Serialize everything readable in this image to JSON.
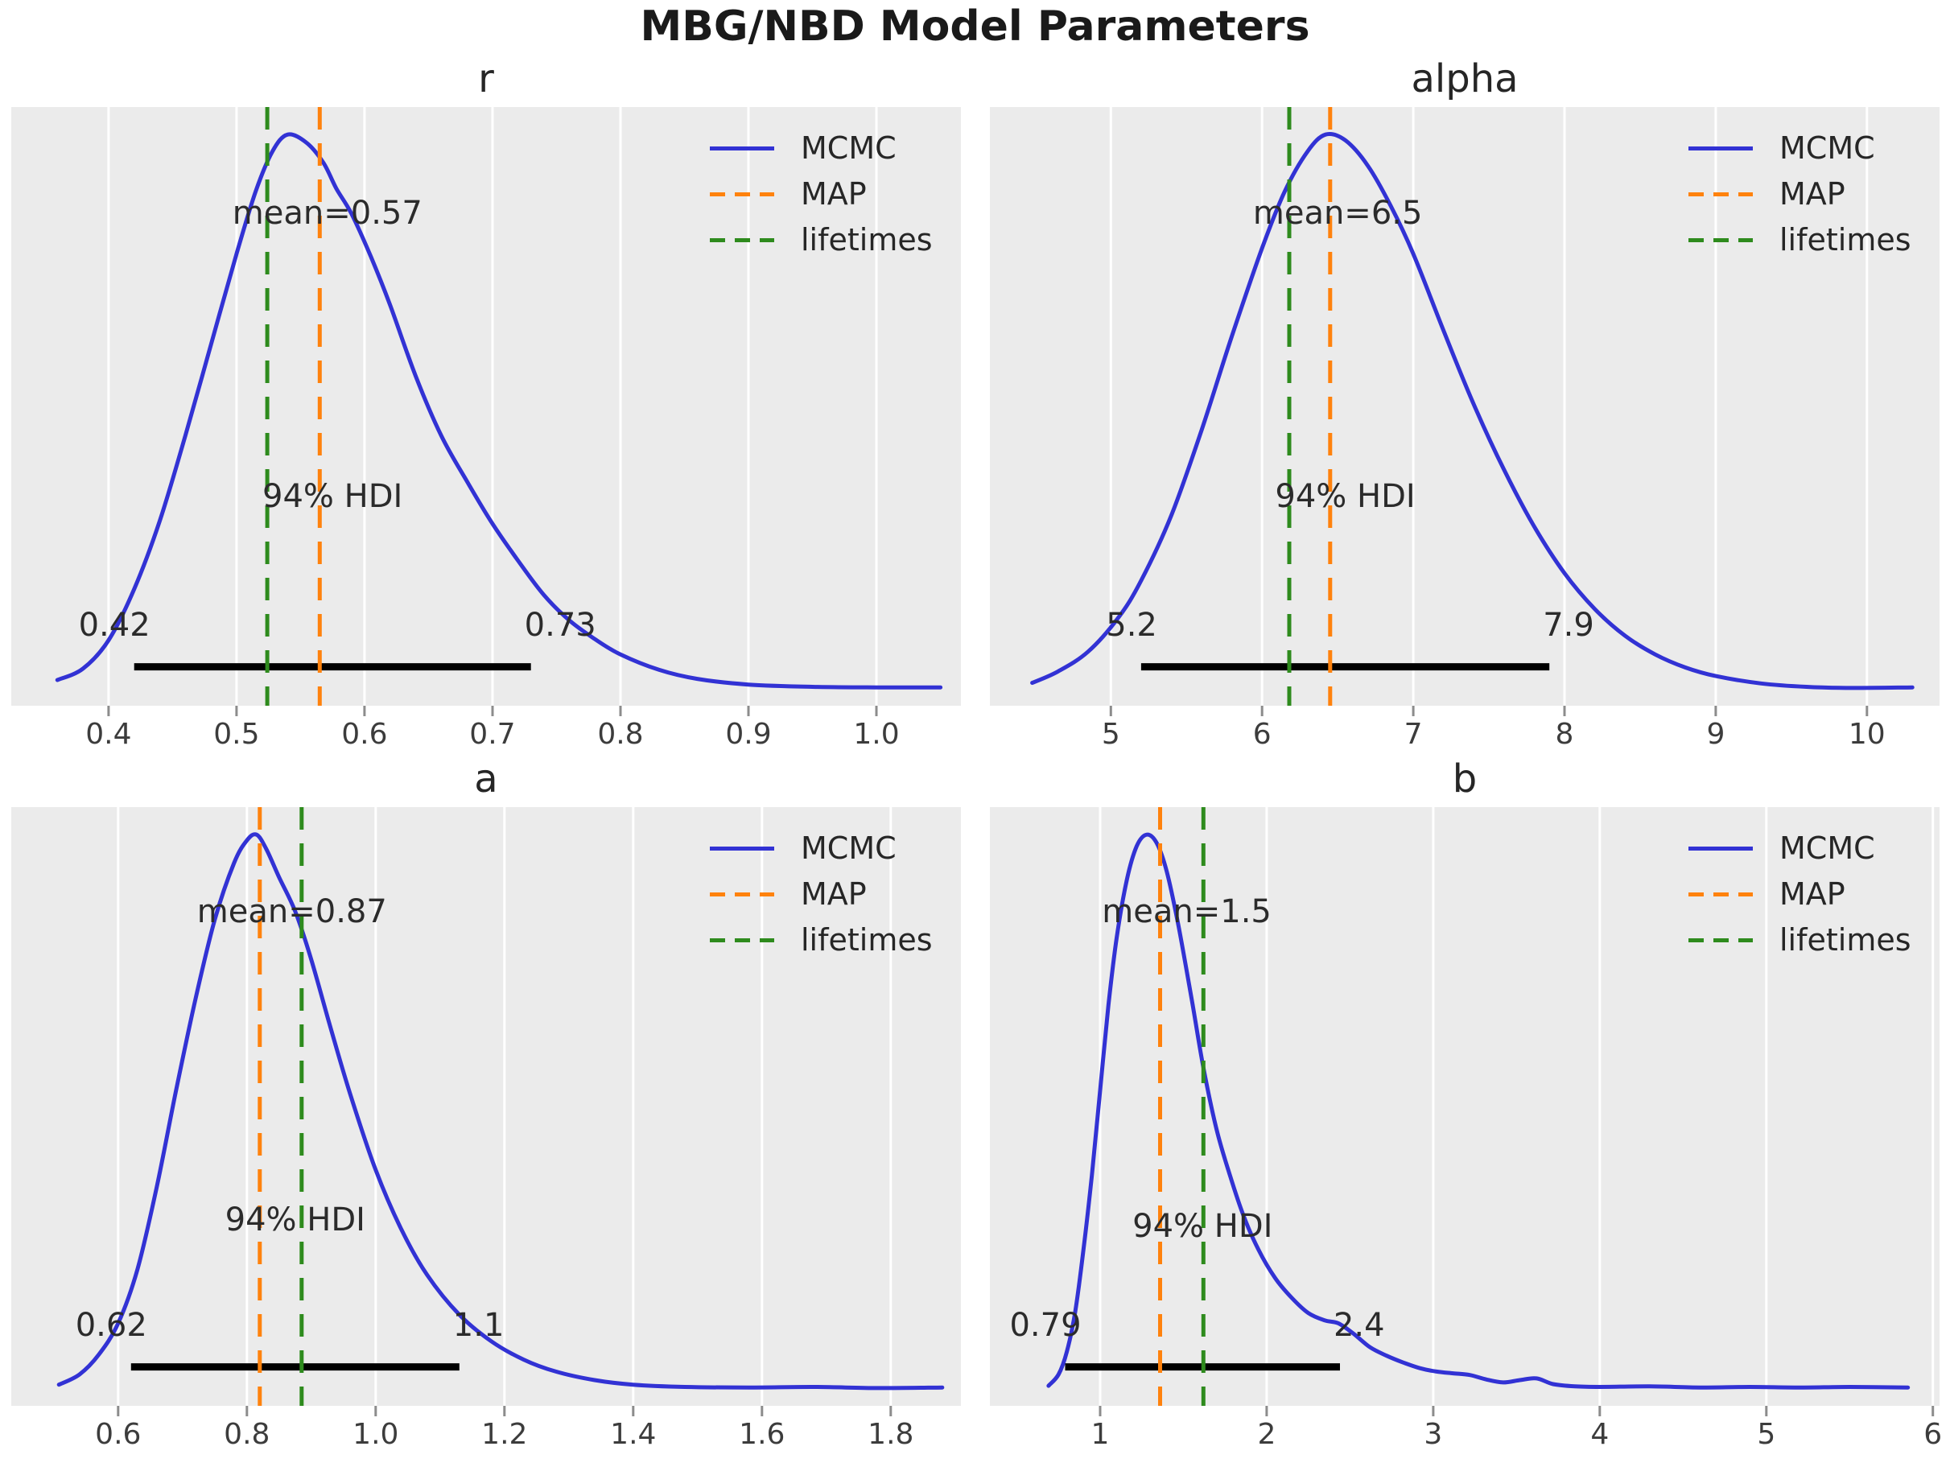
{
  "chart_data": {
    "type": "kde-posterior-grid",
    "suptitle": "MBG/NBD Model Parameters",
    "grid": "2x2",
    "legend_position": "upper-right-each-subplot",
    "colors": {
      "mcmc": "#3232d4",
      "map": "#ff820d",
      "lifetimes": "#2e8b1d",
      "plot_bg": "#ebebeb",
      "gridline": "#ffffff",
      "hdi_bar": "#000000",
      "tick_mark": "#8c8c8c"
    },
    "legend_entries": [
      {
        "label": "MCMC",
        "style": "solid",
        "color_key": "mcmc"
      },
      {
        "label": "MAP",
        "style": "dashed",
        "color_key": "map"
      },
      {
        "label": "lifetimes",
        "style": "dashed",
        "color_key": "lifetimes"
      }
    ],
    "plots": [
      {
        "title": "r",
        "xlim": [
          0.324,
          1.066
        ],
        "xticks": [
          0.4,
          0.5,
          0.6,
          0.7,
          0.8,
          0.9,
          1.0
        ],
        "xtick_labels": [
          "0.4",
          "0.5",
          "0.6",
          "0.7",
          "0.8",
          "0.9",
          "1.0"
        ],
        "mean": {
          "label": "mean=0.57",
          "x": 0.571,
          "yfrac": 0.177
        },
        "hdi": {
          "text": "94% HDI",
          "low": 0.42,
          "high": 0.73,
          "low_label": "0.42",
          "high_label": "0.73",
          "text_yfrac": 0.65,
          "label_yfrac": 0.865,
          "bar_yfrac": 0.935
        },
        "vlines": {
          "map": 0.565,
          "lifetimes": 0.524
        },
        "kde": [
          [
            0.36,
            0.04
          ],
          [
            0.38,
            0.06
          ],
          [
            0.4,
            0.11
          ],
          [
            0.42,
            0.2
          ],
          [
            0.44,
            0.32
          ],
          [
            0.46,
            0.47
          ],
          [
            0.48,
            0.63
          ],
          [
            0.5,
            0.79
          ],
          [
            0.515,
            0.9
          ],
          [
            0.528,
            0.97
          ],
          [
            0.54,
            1.0
          ],
          [
            0.555,
            0.985
          ],
          [
            0.568,
            0.95
          ],
          [
            0.578,
            0.905
          ],
          [
            0.59,
            0.86
          ],
          [
            0.605,
            0.785
          ],
          [
            0.62,
            0.7
          ],
          [
            0.64,
            0.575
          ],
          [
            0.66,
            0.47
          ],
          [
            0.68,
            0.39
          ],
          [
            0.7,
            0.315
          ],
          [
            0.72,
            0.25
          ],
          [
            0.74,
            0.19
          ],
          [
            0.76,
            0.145
          ],
          [
            0.78,
            0.112
          ],
          [
            0.8,
            0.085
          ],
          [
            0.83,
            0.058
          ],
          [
            0.86,
            0.042
          ],
          [
            0.9,
            0.032
          ],
          [
            0.95,
            0.028
          ],
          [
            1.0,
            0.027
          ],
          [
            1.05,
            0.027
          ]
        ]
      },
      {
        "title": "alpha",
        "xlim": [
          4.2,
          10.48
        ],
        "xticks": [
          5,
          6,
          7,
          8,
          9,
          10
        ],
        "xtick_labels": [
          "5",
          "6",
          "7",
          "8",
          "9",
          "10"
        ],
        "mean": {
          "label": "mean=6.5",
          "x": 6.5,
          "yfrac": 0.177
        },
        "hdi": {
          "text": "94% HDI",
          "low": 5.2,
          "high": 7.9,
          "low_label": "5.2",
          "high_label": "7.9",
          "text_yfrac": 0.65,
          "label_yfrac": 0.865,
          "bar_yfrac": 0.935
        },
        "vlines": {
          "map": 6.45,
          "lifetimes": 6.18
        },
        "kde": [
          [
            4.48,
            0.035
          ],
          [
            4.65,
            0.055
          ],
          [
            4.85,
            0.09
          ],
          [
            5.05,
            0.15
          ],
          [
            5.2,
            0.215
          ],
          [
            5.4,
            0.33
          ],
          [
            5.6,
            0.48
          ],
          [
            5.8,
            0.645
          ],
          [
            6.0,
            0.8
          ],
          [
            6.15,
            0.9
          ],
          [
            6.3,
            0.97
          ],
          [
            6.42,
            1.0
          ],
          [
            6.55,
            0.99
          ],
          [
            6.7,
            0.945
          ],
          [
            6.85,
            0.875
          ],
          [
            7.0,
            0.79
          ],
          [
            7.2,
            0.655
          ],
          [
            7.4,
            0.525
          ],
          [
            7.6,
            0.41
          ],
          [
            7.8,
            0.31
          ],
          [
            8.0,
            0.228
          ],
          [
            8.2,
            0.165
          ],
          [
            8.4,
            0.118
          ],
          [
            8.6,
            0.085
          ],
          [
            8.8,
            0.062
          ],
          [
            9.0,
            0.047
          ],
          [
            9.3,
            0.034
          ],
          [
            9.6,
            0.028
          ],
          [
            9.9,
            0.026
          ],
          [
            10.3,
            0.027
          ]
        ]
      },
      {
        "title": "a",
        "xlim": [
          0.434,
          1.909
        ],
        "xticks": [
          0.6,
          0.8,
          1.0,
          1.2,
          1.4,
          1.6,
          1.8
        ],
        "xtick_labels": [
          "0.6",
          "0.8",
          "1.0",
          "1.2",
          "1.4",
          "1.6",
          "1.8"
        ],
        "mean": {
          "label": "mean=0.87",
          "x": 0.87,
          "yfrac": 0.175
        },
        "hdi": {
          "text": "94% HDI",
          "low": 0.62,
          "high": 1.13,
          "low_label": "0.62",
          "high_label": "1.1",
          "text_yfrac": 0.69,
          "label_yfrac": 0.865,
          "bar_yfrac": 0.935
        },
        "vlines": {
          "map": 0.82,
          "lifetimes": 0.885
        },
        "kde": [
          [
            0.508,
            0.032
          ],
          [
            0.54,
            0.05
          ],
          [
            0.57,
            0.085
          ],
          [
            0.6,
            0.14
          ],
          [
            0.63,
            0.235
          ],
          [
            0.66,
            0.38
          ],
          [
            0.69,
            0.55
          ],
          [
            0.72,
            0.71
          ],
          [
            0.75,
            0.85
          ],
          [
            0.78,
            0.95
          ],
          [
            0.8,
            0.99
          ],
          [
            0.815,
            1.0
          ],
          [
            0.83,
            0.975
          ],
          [
            0.85,
            0.925
          ],
          [
            0.875,
            0.865
          ],
          [
            0.9,
            0.78
          ],
          [
            0.93,
            0.66
          ],
          [
            0.96,
            0.545
          ],
          [
            1.0,
            0.41
          ],
          [
            1.04,
            0.305
          ],
          [
            1.08,
            0.225
          ],
          [
            1.13,
            0.155
          ],
          [
            1.18,
            0.108
          ],
          [
            1.23,
            0.076
          ],
          [
            1.28,
            0.055
          ],
          [
            1.34,
            0.04
          ],
          [
            1.4,
            0.032
          ],
          [
            1.48,
            0.028
          ],
          [
            1.58,
            0.027
          ],
          [
            1.68,
            0.028
          ],
          [
            1.78,
            0.026
          ],
          [
            1.88,
            0.027
          ]
        ]
      },
      {
        "title": "b",
        "xlim": [
          0.338,
          6.04
        ],
        "xticks": [
          1,
          2,
          3,
          4,
          5,
          6
        ],
        "xtick_labels": [
          "1",
          "2",
          "3",
          "4",
          "5",
          "6"
        ],
        "mean": {
          "label": "mean=1.5",
          "x": 1.52,
          "yfrac": 0.175
        },
        "hdi": {
          "text": "94% HDI",
          "low": 0.79,
          "high": 2.44,
          "low_label": "0.79",
          "high_label": "2.4",
          "text_yfrac": 0.7,
          "label_yfrac": 0.865,
          "bar_yfrac": 0.935
        },
        "vlines": {
          "map": 1.36,
          "lifetimes": 1.62
        },
        "kde": [
          [
            0.69,
            0.03
          ],
          [
            0.75,
            0.05
          ],
          [
            0.8,
            0.09
          ],
          [
            0.85,
            0.16
          ],
          [
            0.9,
            0.27
          ],
          [
            0.95,
            0.4
          ],
          [
            1.0,
            0.55
          ],
          [
            1.05,
            0.7
          ],
          [
            1.1,
            0.82
          ],
          [
            1.16,
            0.92
          ],
          [
            1.22,
            0.98
          ],
          [
            1.28,
            1.0
          ],
          [
            1.34,
            0.985
          ],
          [
            1.4,
            0.935
          ],
          [
            1.47,
            0.84
          ],
          [
            1.55,
            0.71
          ],
          [
            1.62,
            0.59
          ],
          [
            1.7,
            0.48
          ],
          [
            1.78,
            0.4
          ],
          [
            1.86,
            0.33
          ],
          [
            1.95,
            0.27
          ],
          [
            2.05,
            0.22
          ],
          [
            2.15,
            0.185
          ],
          [
            2.25,
            0.158
          ],
          [
            2.35,
            0.145
          ],
          [
            2.43,
            0.14
          ],
          [
            2.52,
            0.122
          ],
          [
            2.62,
            0.098
          ],
          [
            2.72,
            0.083
          ],
          [
            2.82,
            0.071
          ],
          [
            2.92,
            0.061
          ],
          [
            3.02,
            0.055
          ],
          [
            3.12,
            0.052
          ],
          [
            3.22,
            0.049
          ],
          [
            3.32,
            0.041
          ],
          [
            3.42,
            0.036
          ],
          [
            3.52,
            0.04
          ],
          [
            3.62,
            0.043
          ],
          [
            3.72,
            0.033
          ],
          [
            3.85,
            0.029
          ],
          [
            4.0,
            0.028
          ],
          [
            4.3,
            0.029
          ],
          [
            4.6,
            0.027
          ],
          [
            4.9,
            0.028
          ],
          [
            5.2,
            0.027
          ],
          [
            5.5,
            0.028
          ],
          [
            5.85,
            0.027
          ]
        ]
      }
    ]
  }
}
